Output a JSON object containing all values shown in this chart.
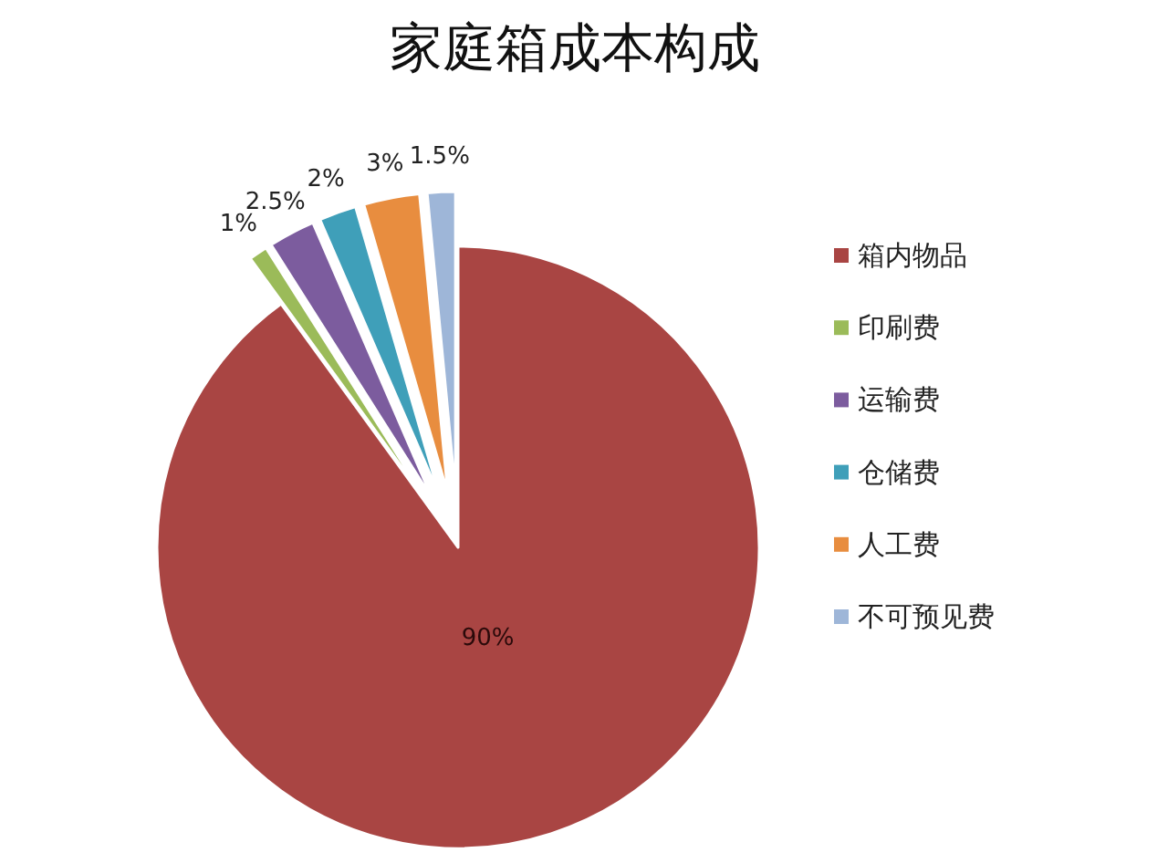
{
  "chart_data": {
    "type": "pie",
    "title": "家庭箱成本构成",
    "categories": [
      "箱内物品",
      "印刷费",
      "运输费",
      "仓储费",
      "人工费",
      "不可预见费"
    ],
    "values": [
      90,
      1,
      2.5,
      2,
      3,
      1.5
    ],
    "value_labels": [
      "90%",
      "1%",
      "2.5%",
      "2%",
      "3%",
      "1.5%"
    ],
    "colors": [
      "#a94543",
      "#9bbb59",
      "#7c5c9e",
      "#3f9fb9",
      "#e88d3f",
      "#9eb6d8"
    ],
    "legend": "right"
  }
}
